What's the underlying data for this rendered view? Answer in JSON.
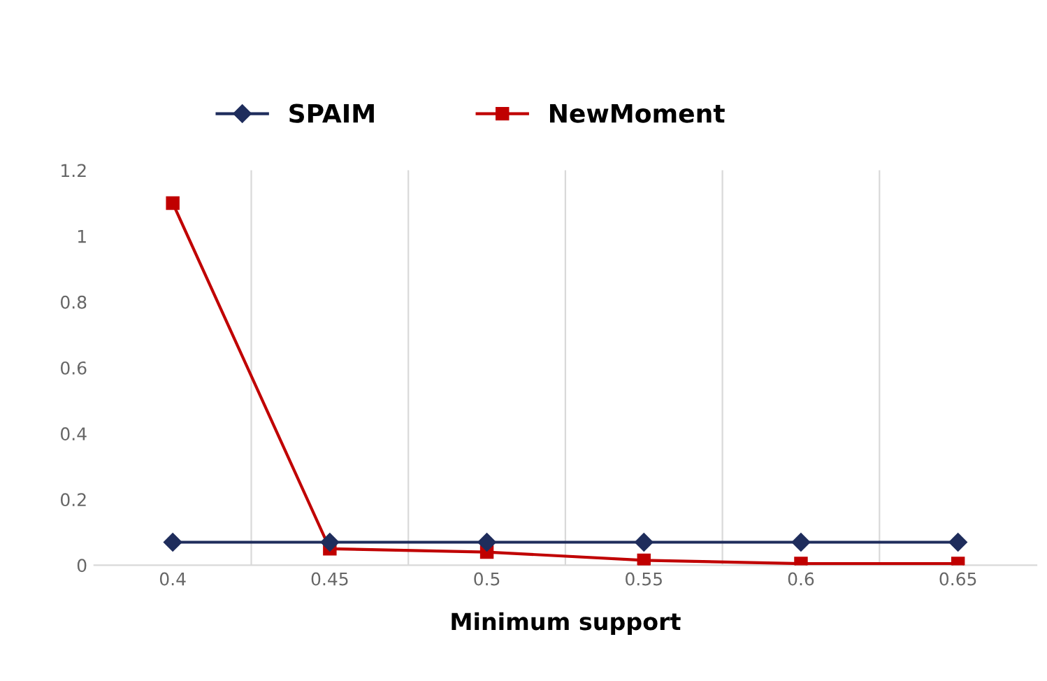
{
  "chart_data": {
    "type": "line",
    "xlabel": "Minimum support",
    "categories": [
      "0.4",
      "0.45",
      "0.5",
      "0.55",
      "0.6",
      "0.65"
    ],
    "series": [
      {
        "name": "SPAIM",
        "color": "#1f2d5c",
        "marker": "diamond",
        "values": [
          0.07,
          0.07,
          0.07,
          0.07,
          0.07,
          0.07
        ]
      },
      {
        "name": "NewMoment",
        "color": "#c00000",
        "marker": "square",
        "values": [
          1.1,
          0.05,
          0.04,
          0.015,
          0.005,
          0.005
        ]
      }
    ],
    "ylim": [
      0,
      1.2
    ],
    "yticks": [
      0,
      0.2,
      0.4,
      0.6,
      0.8,
      1,
      1.2
    ],
    "grid": "x",
    "legend": "top"
  }
}
